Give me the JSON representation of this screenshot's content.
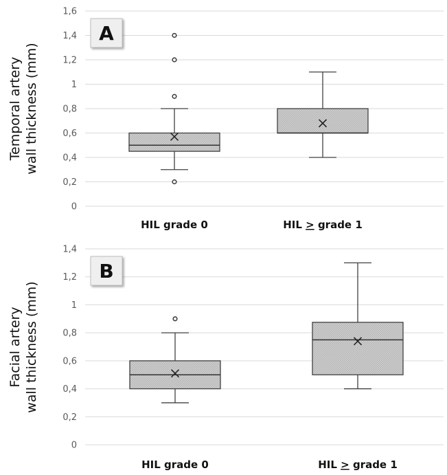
{
  "chart_data": [
    {
      "type": "box",
      "panel_label": "A",
      "ylabel_lines": [
        "Temporal artery",
        "wall thickness (mm)"
      ],
      "ylim": [
        0,
        1.6
      ],
      "yticks": [
        "0",
        "0,2",
        "0,4",
        "0,6",
        "0,8",
        "1",
        "1,2",
        "1,4",
        "1,6"
      ],
      "grid": true,
      "categories": [
        {
          "prefix": "HIL ",
          "underlined": "",
          "suffix": "grade 0"
        },
        {
          "prefix": "HIL ",
          "underlined": ">",
          "suffix": " grade 1"
        }
      ],
      "boxes": [
        {
          "whisker_low": 0.3,
          "q1": 0.45,
          "median": 0.5,
          "q3": 0.6,
          "whisker_high": 0.8,
          "mean": 0.57,
          "outliers": [
            0.2,
            0.9,
            1.2,
            1.4
          ]
        },
        {
          "whisker_low": 0.4,
          "q1": 0.6,
          "median": 0.6,
          "q3": 0.8,
          "whisker_high": 1.1,
          "mean": 0.68,
          "outliers": []
        }
      ]
    },
    {
      "type": "box",
      "panel_label": "B",
      "ylabel_lines": [
        "Facial artery",
        "wall thickness (mm)"
      ],
      "ylim": [
        0,
        1.4
      ],
      "yticks": [
        "0",
        "0,2",
        "0,4",
        "0,6",
        "0,8",
        "1",
        "1,2",
        "1,4"
      ],
      "grid": true,
      "categories": [
        {
          "prefix": "HIL ",
          "underlined": "",
          "suffix": "grade 0"
        },
        {
          "prefix": "HIL ",
          "underlined": ">",
          "suffix": " grade 1"
        }
      ],
      "boxes": [
        {
          "whisker_low": 0.3,
          "q1": 0.4,
          "median": 0.5,
          "q3": 0.6,
          "whisker_high": 0.8,
          "mean": 0.51,
          "outliers": [
            0.9
          ]
        },
        {
          "whisker_low": 0.4,
          "q1": 0.5,
          "median": 0.75,
          "q3": 0.875,
          "whisker_high": 1.3,
          "mean": 0.74,
          "outliers": []
        }
      ]
    }
  ]
}
